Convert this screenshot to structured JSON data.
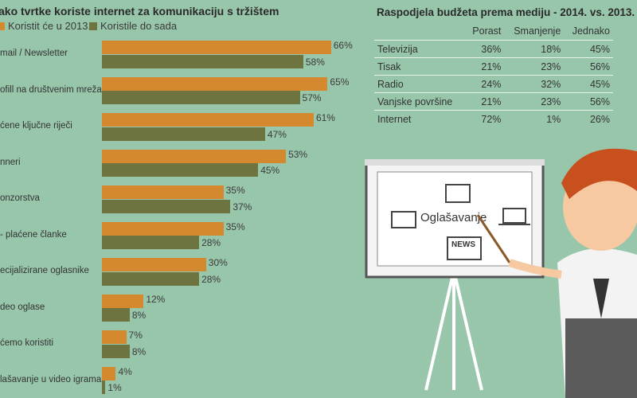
{
  "chart_data": {
    "type": "bar",
    "title": "Kako tvrtke koriste internet za komunikaciju s tržištem",
    "categories": [
      "E-mail / Newsletter",
      "Profil na društvenim mrežama",
      "Plaćene ključne riječi",
      "Banneri",
      "Sponzorstva",
      "PR - plaćene članke",
      "Specijalizirane oglasnike",
      "Video oglase",
      "Ne ćemo koristiti",
      "Oglašavanje u video igrama"
    ],
    "category_labels_visible": [
      "mail / Newsletter",
      "ofill na društvenim mrežama",
      "ćene ključne riječi",
      "nneri",
      "onzorstva",
      "- plaćene članke",
      "ecijalizirane oglasnike",
      "deo oglase",
      "ćemo koristiti",
      "lašavanje u video igrama"
    ],
    "title_visible": "ako tvrtke koriste internet za komunikaciju s tržištem",
    "series": [
      {
        "name": "Koristit će u 2013.",
        "color": "#d4892e",
        "values": [
          66,
          65,
          61,
          53,
          35,
          35,
          30,
          12,
          7,
          4
        ]
      },
      {
        "name": "Koristile do sada",
        "color": "#6e7440",
        "values": [
          58,
          57,
          47,
          45,
          37,
          28,
          28,
          8,
          8,
          1
        ]
      }
    ],
    "unit": "%",
    "xlim": [
      0,
      70
    ]
  },
  "table": {
    "title": "Raspodjela budžeta prema mediju - 2014. vs. 2013.",
    "headers": [
      "",
      "Porast",
      "Smanjenje",
      "Jednako"
    ],
    "rows": [
      [
        "Televizija",
        "36%",
        "18%",
        "45%"
      ],
      [
        "Tisak",
        "21%",
        "23%",
        "56%"
      ],
      [
        "Radio",
        "24%",
        "32%",
        "45%"
      ],
      [
        "Vanjske površine",
        "21%",
        "23%",
        "56%"
      ],
      [
        "Internet",
        "72%",
        "1%",
        "26%"
      ]
    ]
  },
  "illustration": {
    "board_label": "Oglašavanje",
    "news_label": "NEWS"
  }
}
